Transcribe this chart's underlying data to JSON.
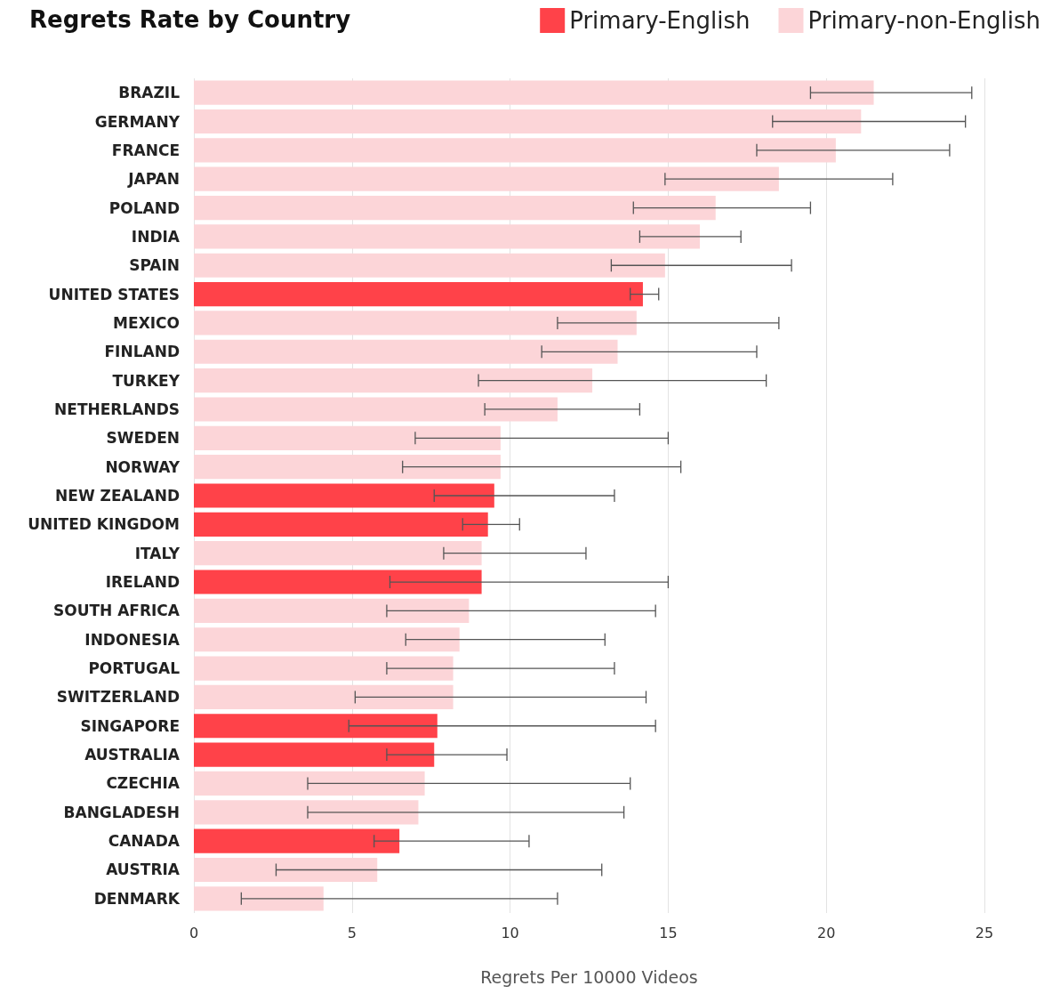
{
  "chart_data": {
    "type": "bar",
    "orientation": "horizontal",
    "title": "Regrets Rate by Country",
    "xlabel": "Regrets Per 10000 Videos",
    "categories": [
      "BRAZIL",
      "GERMANY",
      "FRANCE",
      "JAPAN",
      "POLAND",
      "INDIA",
      "SPAIN",
      "UNITED STATES",
      "MEXICO",
      "FINLAND",
      "TURKEY",
      "NETHERLANDS",
      "SWEDEN",
      "NORWAY",
      "NEW ZEALAND",
      "UNITED KINGDOM",
      "ITALY",
      "IRELAND",
      "SOUTH AFRICA",
      "INDONESIA",
      "PORTUGAL",
      "SWITZERLAND",
      "SINGAPORE",
      "AUSTRALIA",
      "CZECHIA",
      "BANGLADESH",
      "CANADA",
      "AUSTRIA",
      "DENMARK"
    ],
    "series": [
      {
        "name": "Primary-English",
        "color": "#ff4249",
        "values": [
          null,
          null,
          null,
          null,
          null,
          null,
          null,
          14.2,
          null,
          null,
          null,
          null,
          null,
          null,
          9.5,
          9.3,
          null,
          9.1,
          null,
          null,
          null,
          null,
          7.7,
          7.6,
          null,
          null,
          6.5,
          null,
          null
        ],
        "errors": [
          null,
          null,
          null,
          null,
          null,
          null,
          null,
          [
            13.8,
            14.7
          ],
          null,
          null,
          null,
          null,
          null,
          null,
          [
            7.6,
            13.3
          ],
          [
            8.5,
            10.3
          ],
          null,
          [
            6.2,
            15.0
          ],
          null,
          null,
          null,
          null,
          [
            4.9,
            14.6
          ],
          [
            6.1,
            9.9
          ],
          null,
          null,
          [
            5.7,
            10.6
          ],
          null,
          null
        ]
      },
      {
        "name": "Primary-non-English",
        "color": "#fcd5d8",
        "values": [
          21.5,
          21.1,
          20.3,
          18.5,
          16.5,
          16.0,
          14.9,
          null,
          14.0,
          13.4,
          12.6,
          11.5,
          9.7,
          9.7,
          null,
          null,
          9.1,
          null,
          8.7,
          8.4,
          8.2,
          8.2,
          null,
          null,
          7.3,
          7.1,
          null,
          5.8,
          4.1
        ],
        "errors": [
          [
            19.5,
            24.6
          ],
          [
            18.3,
            24.4
          ],
          [
            17.8,
            23.9
          ],
          [
            14.9,
            22.1
          ],
          [
            13.9,
            19.5
          ],
          [
            14.1,
            17.3
          ],
          [
            13.2,
            18.9
          ],
          null,
          [
            11.5,
            18.5
          ],
          [
            11.0,
            17.8
          ],
          [
            9.0,
            18.1
          ],
          [
            9.2,
            14.1
          ],
          [
            7.0,
            15.0
          ],
          [
            6.6,
            15.4
          ],
          null,
          null,
          [
            7.9,
            12.4
          ],
          null,
          [
            6.1,
            14.6
          ],
          [
            6.7,
            13.0
          ],
          [
            6.1,
            13.3
          ],
          [
            5.1,
            14.3
          ],
          null,
          null,
          [
            3.6,
            13.8
          ],
          [
            3.6,
            13.6
          ],
          null,
          [
            2.6,
            12.9
          ],
          [
            1.5,
            11.5
          ]
        ]
      }
    ],
    "xlim": [
      0,
      25
    ],
    "xticks": [
      0,
      5,
      10,
      15,
      20,
      25
    ],
    "grid": "x",
    "legend": "top right"
  }
}
